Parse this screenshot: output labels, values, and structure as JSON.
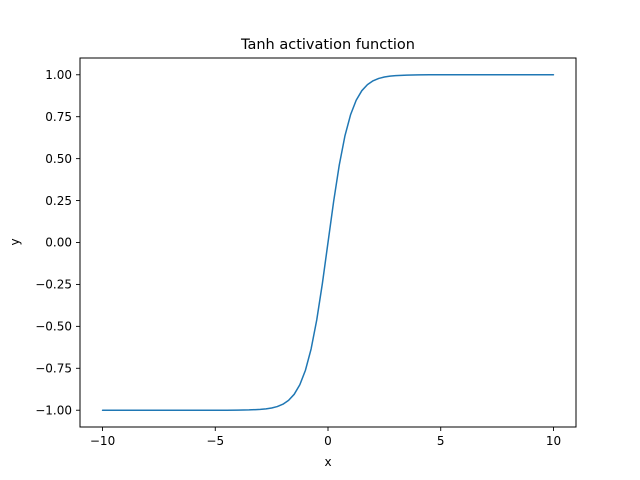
{
  "chart_data": {
    "type": "line",
    "title": "Tanh activation function",
    "xlabel": "x",
    "ylabel": "y",
    "xlim": [
      -11,
      11
    ],
    "ylim": [
      -1.1,
      1.1
    ],
    "x_ticks": [
      -10,
      -5,
      0,
      5,
      10
    ],
    "x_tick_labels": [
      "−10",
      "−5",
      "0",
      "5",
      "10"
    ],
    "y_ticks": [
      -1.0,
      -0.75,
      -0.5,
      -0.25,
      0.0,
      0.25,
      0.5,
      0.75,
      1.0
    ],
    "y_tick_labels": [
      "−1.00",
      "−0.75",
      "−0.50",
      "−0.25",
      "0.00",
      "0.25",
      "0.50",
      "0.75",
      "1.00"
    ],
    "grid": false,
    "legend": "none",
    "series": [
      {
        "color": "#1f77b4",
        "x": [
          -10,
          -9,
          -8,
          -7,
          -6,
          -5,
          -4.5,
          -4,
          -3.5,
          -3,
          -2.75,
          -2.5,
          -2.25,
          -2,
          -1.75,
          -1.5,
          -1.25,
          -1,
          -0.75,
          -0.5,
          -0.25,
          0,
          0.25,
          0.5,
          0.75,
          1,
          1.25,
          1.5,
          1.75,
          2,
          2.25,
          2.5,
          2.75,
          3,
          3.5,
          4,
          4.5,
          5,
          6,
          7,
          8,
          9,
          10
        ],
        "y": [
          -1.0,
          -1.0,
          -1.0,
          -1.0,
          -1.0,
          -0.9999,
          -0.9998,
          -0.9993,
          -0.9982,
          -0.9951,
          -0.9918,
          -0.9866,
          -0.978,
          -0.964,
          -0.9414,
          -0.9051,
          -0.8483,
          -0.7616,
          -0.6351,
          -0.4621,
          -0.2449,
          0.0,
          0.2449,
          0.4621,
          0.6351,
          0.7616,
          0.8483,
          0.9051,
          0.9414,
          0.964,
          0.978,
          0.9866,
          0.9918,
          0.9951,
          0.9982,
          0.9993,
          0.9998,
          0.9999,
          1.0,
          1.0,
          1.0,
          1.0,
          1.0
        ]
      }
    ]
  }
}
